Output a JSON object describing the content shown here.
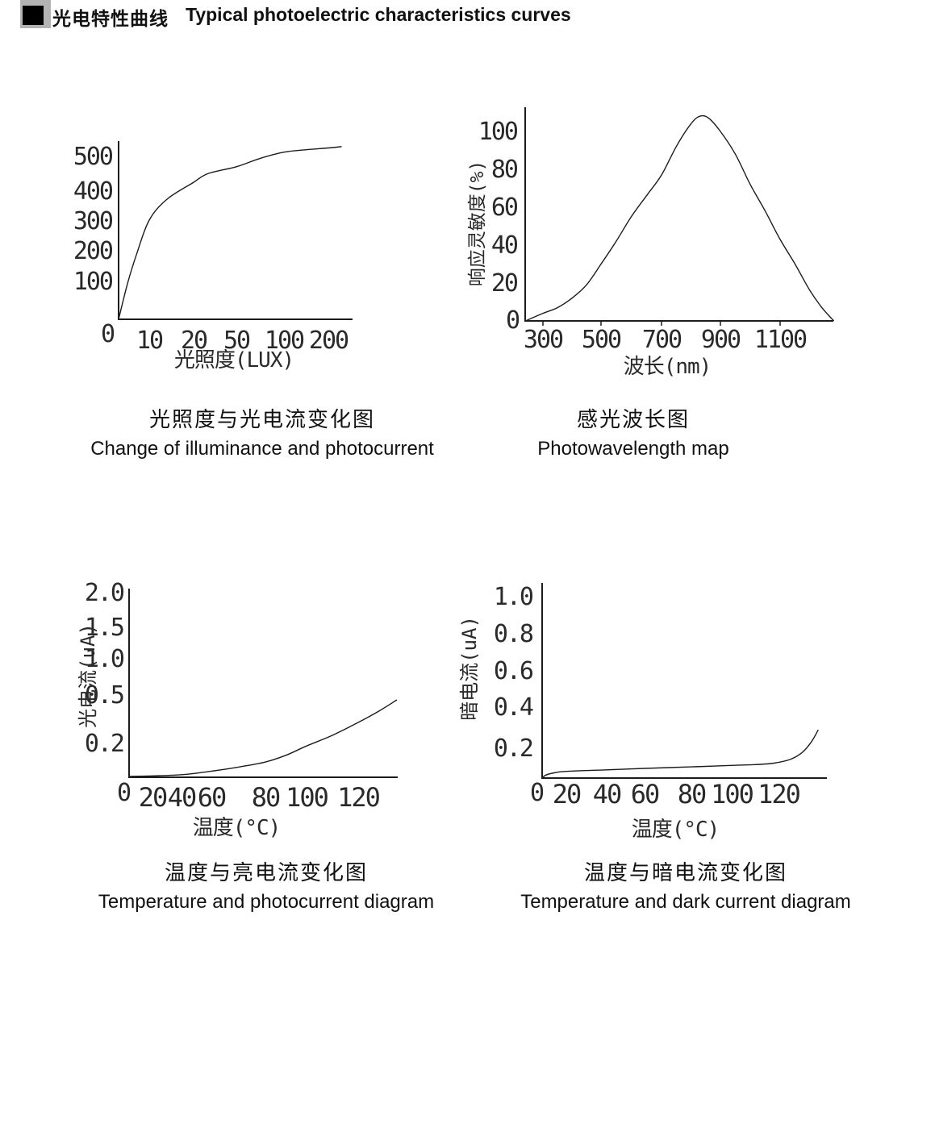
{
  "header": {
    "title_zh": "光电特性曲线",
    "title_en": "Typical photoelectric characteristics curves"
  },
  "colors": {
    "ink": "#1c1c1c",
    "marker_gray": "#b3b3b3",
    "marker_black": "#000000",
    "background": "#ffffff"
  },
  "chart_data": [
    {
      "type": "line",
      "title_zh": "光照度与光电流变化图",
      "title_en": "Change of illuminance and photocurrent",
      "xlabel": "光照度(LUX)",
      "ylabel": "",
      "origin_label": "0",
      "xticks": [
        "10",
        "20",
        "50",
        "100",
        "200"
      ],
      "yticks": [
        "500",
        "400",
        "300",
        "200",
        "100"
      ],
      "x_scale_note": "non-linear lux axis, ticks evenly drawn",
      "xlim": [
        0,
        230
      ],
      "ylim": [
        0,
        560
      ],
      "grid": false,
      "points": [
        [
          0,
          0
        ],
        [
          3,
          95
        ],
        [
          6,
          190
        ],
        [
          10,
          300
        ],
        [
          14,
          370
        ],
        [
          20,
          423
        ],
        [
          30,
          448
        ],
        [
          50,
          468
        ],
        [
          75,
          492
        ],
        [
          100,
          510
        ],
        [
          150,
          517
        ],
        [
          200,
          522
        ],
        [
          230,
          526
        ]
      ]
    },
    {
      "type": "line",
      "title_zh": "感光波长图",
      "title_en": "Photowavelength map",
      "xlabel": "波长(nm)",
      "ylabel": "响应灵敏度(%)",
      "origin_label": "0",
      "xticks": [
        "300",
        "500",
        "700",
        "900",
        "1100"
      ],
      "yticks": [
        "100",
        "80",
        "60",
        "40",
        "20"
      ],
      "xlim": [
        240,
        1280
      ],
      "ylim": [
        0,
        110
      ],
      "grid": false,
      "points": [
        [
          240,
          0
        ],
        [
          300,
          4
        ],
        [
          350,
          7
        ],
        [
          400,
          12
        ],
        [
          450,
          19
        ],
        [
          500,
          30
        ],
        [
          550,
          42
        ],
        [
          600,
          55
        ],
        [
          650,
          66
        ],
        [
          700,
          77
        ],
        [
          750,
          92
        ],
        [
          800,
          104
        ],
        [
          830,
          108
        ],
        [
          860,
          107
        ],
        [
          900,
          100
        ],
        [
          950,
          88
        ],
        [
          1000,
          72
        ],
        [
          1050,
          58
        ],
        [
          1100,
          43
        ],
        [
          1150,
          30
        ],
        [
          1200,
          16
        ],
        [
          1240,
          7
        ],
        [
          1280,
          0
        ]
      ]
    },
    {
      "type": "line",
      "title_zh": "温度与亮电流变化图",
      "title_en": "Temperature and photocurrent diagram",
      "xlabel": "温度(°C)",
      "ylabel": "光电流(uA)",
      "origin_label": "0",
      "xticks": [
        "20",
        "40",
        "60",
        "80",
        "100",
        "120"
      ],
      "yticks": [
        "2.0",
        "1.5",
        "1.0",
        "0.5",
        "0.2"
      ],
      "y_scale_note": "non-linear current axis, ticks evenly drawn",
      "xlim": [
        0,
        135
      ],
      "ylim": [
        0,
        2.0
      ],
      "grid": false,
      "points": [
        [
          0,
          0.005
        ],
        [
          20,
          0.008
        ],
        [
          40,
          0.015
        ],
        [
          55,
          0.03
        ],
        [
          70,
          0.06
        ],
        [
          80,
          0.09
        ],
        [
          90,
          0.13
        ],
        [
          100,
          0.185
        ],
        [
          110,
          0.25
        ],
        [
          120,
          0.33
        ],
        [
          128,
          0.4
        ],
        [
          135,
          0.47
        ]
      ]
    },
    {
      "type": "line",
      "title_zh": "温度与暗电流变化图",
      "title_en": "Temperature and dark current diagram",
      "xlabel": "温度(°C)",
      "ylabel": "暗电流(uA)",
      "origin_label": "0",
      "xticks": [
        "20",
        "40",
        "60",
        "80",
        "100",
        "120"
      ],
      "yticks": [
        "1.0",
        "0.8",
        "0.6",
        "0.4",
        "0.2"
      ],
      "xlim": [
        0,
        137
      ],
      "ylim": [
        0,
        1.0
      ],
      "grid": false,
      "points": [
        [
          0,
          0
        ],
        [
          3,
          0.02
        ],
        [
          10,
          0.035
        ],
        [
          20,
          0.045
        ],
        [
          40,
          0.055
        ],
        [
          60,
          0.065
        ],
        [
          80,
          0.075
        ],
        [
          100,
          0.085
        ],
        [
          110,
          0.09
        ],
        [
          118,
          0.1
        ],
        [
          125,
          0.125
        ],
        [
          130,
          0.17
        ],
        [
          134,
          0.23
        ],
        [
          137,
          0.29
        ]
      ]
    }
  ]
}
